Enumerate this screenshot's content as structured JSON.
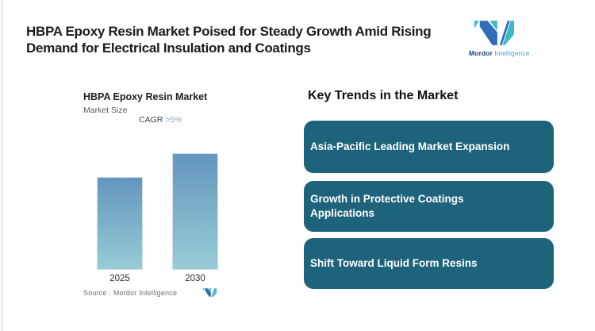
{
  "header": {
    "title_lines": [
      "HBPA Epoxy Resin Market Poised for Steady Growth Amid Rising",
      "Demand for Electrical Insulation and Coatings"
    ],
    "logo": {
      "brand_name_primary": "Mordor",
      "brand_name_secondary": "Intelligence"
    }
  },
  "chart": {
    "title": "HBPA Epoxy Resin Market",
    "subtitle": "Market Size",
    "cagr_label": "CAGR",
    "cagr_value": ">5%",
    "source_text": "Source :  Mordor Intelligence"
  },
  "chart_data": {
    "type": "bar",
    "title": "HBPA Epoxy Resin Market",
    "ylabel": "Market Size",
    "categories": [
      "2025",
      "2030"
    ],
    "values": [
      100,
      126
    ],
    "value_axis_labeled": false,
    "annotation": "CAGR >5%",
    "legend": "none",
    "grid": false,
    "bar_gradient": [
      "#6396be",
      "#97ccd5"
    ]
  },
  "trends": {
    "heading": "Key Trends in the Market",
    "items": [
      {
        "label": "Asia-Pacific Leading Market Expansion"
      },
      {
        "label": "Growth in Protective Coatings Applications"
      },
      {
        "label": "Shift Toward Liquid Form Resins"
      }
    ]
  },
  "colors": {
    "card_bg": "#1e637c",
    "bar_gradient_top": "#6396be",
    "bar_gradient_bottom": "#97ccd5",
    "cagr_value_blue": "#76add4",
    "logo_navy": "#2f6db6",
    "logo_teal": "#3cbac8",
    "wordmark_navy": "#1b3d71",
    "wordmark_blue": "#4aa3cc"
  }
}
